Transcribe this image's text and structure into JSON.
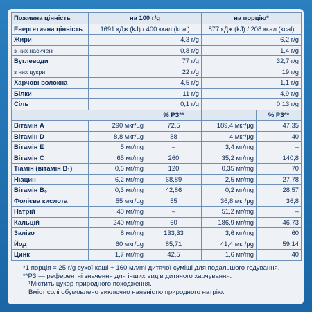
{
  "header": {
    "col_name": "Поживна цінність",
    "col_100g": "на 100 г/g",
    "col_portion": "на порцію*"
  },
  "energy": {
    "label": "Енергетична цінність",
    "per100": "1691 кДж (kJ) / 400 ккал (kcal)",
    "portion": "877 кДж (kJ) / 208 ккал (kcal)"
  },
  "nutrients": [
    {
      "label": "Жири",
      "per100": "4,3 г/g",
      "portion": "6,2 г/g",
      "sub": false
    },
    {
      "label": "з них насичені",
      "per100": "0,8 г/g",
      "portion": "1,4 г/g",
      "sub": true
    },
    {
      "label": "Вуглеводи",
      "per100": "77 г/g",
      "portion": "32,7 г/g",
      "sub": false
    },
    {
      "label": "з них цукри",
      "per100": "22 г/g",
      "portion": "19 г/g",
      "sub": true
    },
    {
      "label": "Харчові волокна",
      "per100": "4,5 г/g",
      "portion": "1,1 г/g",
      "sub": false
    },
    {
      "label": "Білки",
      "per100": "11 г/g",
      "portion": "4,9 г/g",
      "sub": false
    },
    {
      "label": "Сіль",
      "per100": "0,1 г/g",
      "portion": "0,13 г/g",
      "sub": false
    }
  ],
  "rsp_header": "% РЗ**",
  "vitamins": [
    {
      "label": "Вітамін А",
      "v100": "290 мкг/µg",
      "p100": "72,5",
      "vp": "189,4 мкг/µg",
      "pp": "47,35"
    },
    {
      "label": "Вітамін D",
      "v100": "8,8 мкг/µg",
      "p100": "88",
      "vp": "4 мкг/µg",
      "pp": "40"
    },
    {
      "label": "Вітамін Е",
      "v100": "5 мг/mg",
      "p100": "–",
      "vp": "3,4 мг/mg",
      "pp": "–"
    },
    {
      "label": "Вітамін С",
      "v100": "65 мг/mg",
      "p100": "260",
      "vp": "35,2 мг/mg",
      "pp": "140,8"
    },
    {
      "label": "Тіамін (вітамін В₁)",
      "v100": "0,6 мг/mg",
      "p100": "120",
      "vp": "0,35 мг/mg",
      "pp": "70"
    },
    {
      "label": "Ніацин",
      "v100": "6,2 мг/mg",
      "p100": "68,89",
      "vp": "2,5 мг/mg",
      "pp": "27,78"
    },
    {
      "label": "Вітамін В₆",
      "v100": "0,3 мг/mg",
      "p100": "42,86",
      "vp": "0,2 мг/mg",
      "pp": "28,57"
    },
    {
      "label": "Фолієва кислота",
      "v100": "55 мкг/µg",
      "p100": "55",
      "vp": "36,8 мкг/µg",
      "pp": "36,8"
    },
    {
      "label": "Натрій",
      "v100": "40 мг/mg",
      "p100": "–",
      "vp": "51,2 мг/mg",
      "pp": "–"
    },
    {
      "label": "Кальцій",
      "v100": "240 мг/mg",
      "p100": "60",
      "vp": "186,9 мг/mg",
      "pp": "46,73"
    },
    {
      "label": "Залізо",
      "v100": "8 мг/mg",
      "p100": "133,33",
      "vp": "3,6 мг/mg",
      "pp": "60"
    },
    {
      "label": "Йод",
      "v100": "60 мкг/µg",
      "p100": "85,71",
      "vp": "41,4 мкг/µg",
      "pp": "59,14"
    },
    {
      "label": "Цинк",
      "v100": "1,7 мг/mg",
      "p100": "42,5",
      "vp": "1,6 мг/mg",
      "pp": "40"
    }
  ],
  "notes": [
    "*1 порція = 25 г/g сухої каші + 160 мл/ml дитячої суміші для подальшого годування.",
    "**РЗ — референтні значення для інших видів дитячого харчування.",
    "¹Містить цукор природного походження.",
    "Вміст солі обумовлено виключно наявністю природного натрію."
  ]
}
